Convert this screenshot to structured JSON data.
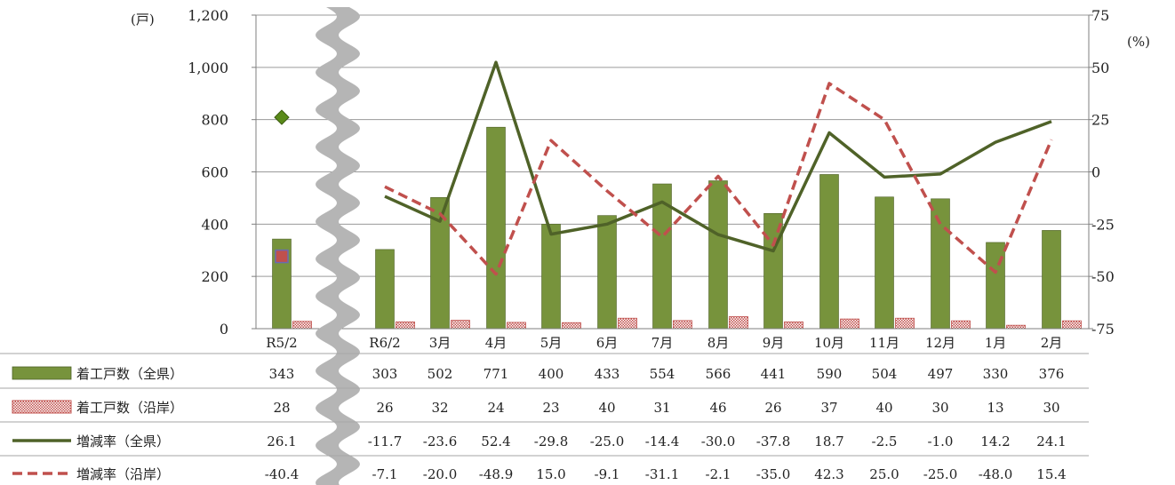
{
  "chart_data": {
    "type": "bar",
    "categories": [
      "R5/2",
      "R6/2",
      "3月",
      "4月",
      "5月",
      "6月",
      "7月",
      "8月",
      "9月",
      "10月",
      "11月",
      "12月",
      "1月",
      "2月"
    ],
    "y_left": {
      "unit": "(戸)",
      "ylim": [
        0,
        1200
      ],
      "ticks": [
        "0",
        "200",
        "400",
        "600",
        "800",
        "1,000",
        "1,200"
      ],
      "tick_values": [
        0,
        200,
        400,
        600,
        800,
        1000,
        1200
      ]
    },
    "y_right": {
      "unit": "(%)",
      "ylim": [
        -75,
        75
      ],
      "ticks": [
        "-75",
        "-50",
        "-25",
        "0",
        "25",
        "50",
        "75"
      ],
      "tick_values": [
        -75,
        -50,
        -25,
        0,
        25,
        50,
        75
      ]
    },
    "grid": true,
    "axis_break_after": "R5/2",
    "series": [
      {
        "name": "着工戸数（全県）",
        "kind": "bar",
        "axis": "left",
        "color": "#77933C",
        "values": [
          343,
          303,
          502,
          771,
          400,
          433,
          554,
          566,
          441,
          590,
          504,
          497,
          330,
          376
        ],
        "labels": [
          "343",
          "303",
          "502",
          "771",
          "400",
          "433",
          "554",
          "566",
          "441",
          "590",
          "504",
          "497",
          "330",
          "376"
        ]
      },
      {
        "name": "着工戸数（沿岸）",
        "kind": "bar",
        "axis": "left",
        "color": "#C0504D",
        "pattern": "dotted",
        "values": [
          28,
          26,
          32,
          24,
          23,
          40,
          31,
          46,
          26,
          37,
          40,
          30,
          13,
          30
        ],
        "labels": [
          "28",
          "26",
          "32",
          "24",
          "23",
          "40",
          "31",
          "46",
          "26",
          "37",
          "40",
          "30",
          "13",
          "30"
        ]
      },
      {
        "name": "増減率（全県）",
        "kind": "line",
        "axis": "right",
        "color": "#4F6228",
        "values": [
          26.1,
          -11.7,
          -23.6,
          52.4,
          -29.8,
          -25.0,
          -14.4,
          -30.0,
          -37.8,
          18.7,
          -2.5,
          -1.0,
          14.2,
          24.1
        ],
        "labels": [
          "26.1",
          "-11.7",
          "-23.6",
          "52.4",
          "-29.8",
          "-25.0",
          "-14.4",
          "-30.0",
          "-37.8",
          "18.7",
          "-2.5",
          "-1.0",
          "14.2",
          "24.1"
        ]
      },
      {
        "name": "増減率（沿岸）",
        "kind": "line",
        "axis": "right",
        "color": "#C0504D",
        "dash": "dashed",
        "values": [
          -40.4,
          -7.1,
          -20.0,
          -48.9,
          15.0,
          -9.1,
          -31.1,
          -2.1,
          -35.0,
          42.3,
          25.0,
          -25.0,
          -48.0,
          15.4
        ],
        "labels": [
          "-40.4",
          "-7.1",
          "-20.0",
          "-48.9",
          "15.0",
          "-9.1",
          "-31.1",
          "-2.1",
          "-35.0",
          "42.3",
          "25.0",
          "-25.0",
          "-48.0",
          "15.4"
        ]
      }
    ]
  }
}
